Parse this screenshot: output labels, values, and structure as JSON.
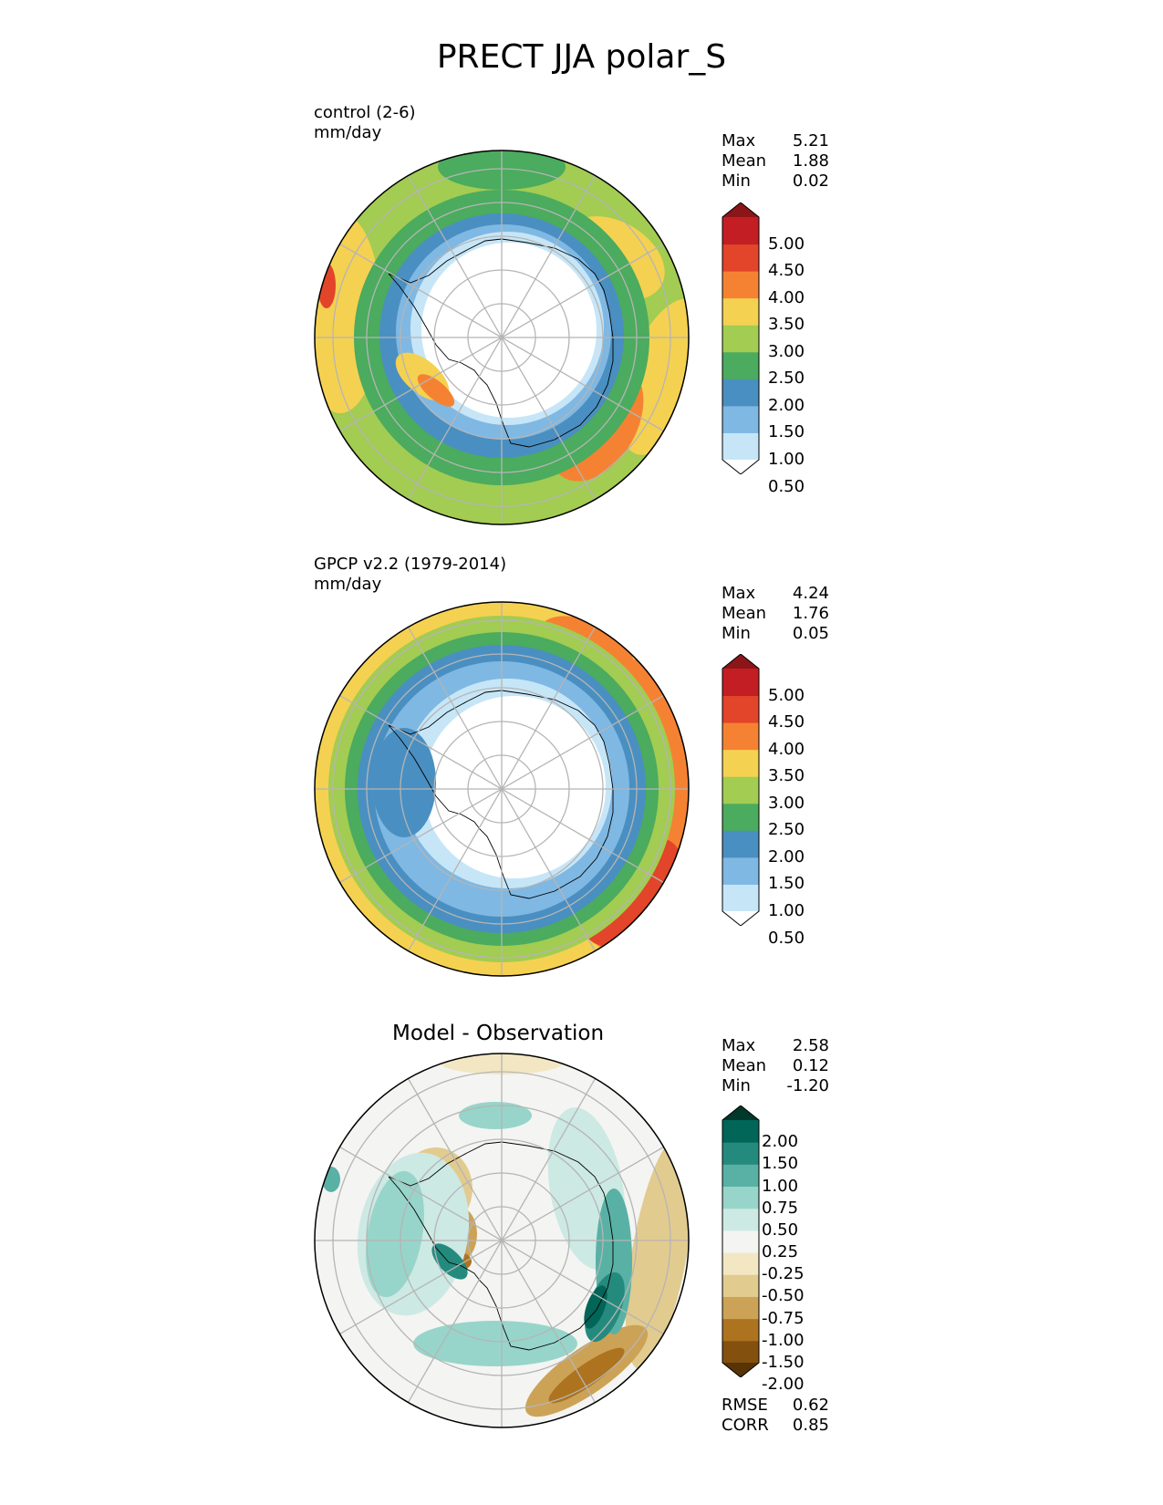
{
  "figure": {
    "title": "PRECT JJA polar_S"
  },
  "panels": [
    {
      "id": "test",
      "title_line1": "control (2-6)",
      "title_line2": "mm/day",
      "stats": [
        {
          "label": "Max",
          "value": "5.21"
        },
        {
          "label": "Mean",
          "value": "1.88"
        },
        {
          "label": "Min",
          "value": "0.02"
        }
      ],
      "colorbar": {
        "levels": [
          "5.00",
          "4.50",
          "4.00",
          "3.50",
          "3.00",
          "2.50",
          "2.00",
          "1.50",
          "1.00",
          "0.50"
        ],
        "colors": [
          "#ffffff",
          "#c6e6f7",
          "#7fb8e3",
          "#4a8fc1",
          "#4bab5e",
          "#a2cc52",
          "#f5d151",
          "#f58232",
          "#e2452a",
          "#c31e24",
          "#8c1519"
        ],
        "extend": "both"
      }
    },
    {
      "id": "reference",
      "title_line1": "GPCP v2.2 (1979-2014)",
      "title_line2": "mm/day",
      "stats": [
        {
          "label": "Max",
          "value": "4.24"
        },
        {
          "label": "Mean",
          "value": "1.76"
        },
        {
          "label": "Min",
          "value": "0.05"
        }
      ],
      "colorbar": {
        "levels": [
          "5.00",
          "4.50",
          "4.00",
          "3.50",
          "3.00",
          "2.50",
          "2.00",
          "1.50",
          "1.00",
          "0.50"
        ],
        "colors": [
          "#ffffff",
          "#c6e6f7",
          "#7fb8e3",
          "#4a8fc1",
          "#4bab5e",
          "#a2cc52",
          "#f5d151",
          "#f58232",
          "#e2452a",
          "#c31e24",
          "#8c1519"
        ],
        "extend": "both"
      }
    },
    {
      "id": "diff",
      "title": "Model - Observation",
      "stats": [
        {
          "label": "Max",
          "value": "2.58"
        },
        {
          "label": "Mean",
          "value": "0.12"
        },
        {
          "label": "Min",
          "value": "-1.20"
        }
      ],
      "metrics": [
        {
          "label": "RMSE",
          "value": "0.62"
        },
        {
          "label": "CORR",
          "value": "0.85"
        }
      ],
      "colorbar": {
        "levels": [
          "2.00",
          "1.50",
          "1.00",
          "0.75",
          "0.50",
          "0.25",
          "-0.25",
          "-0.50",
          "-0.75",
          "-1.00",
          "-1.50",
          "-2.00"
        ],
        "colors": [
          "#573306",
          "#83500e",
          "#ae731f",
          "#cca356",
          "#e2cb8f",
          "#f3e6c3",
          "#f4f4f2",
          "#cde9e4",
          "#97d5ca",
          "#59b1a5",
          "#258a7e",
          "#016557",
          "#00382c"
        ],
        "extend": "both"
      }
    }
  ],
  "chart_data": [
    {
      "type": "heatmap",
      "projection": "south-polar-stereographic",
      "title": "control (2-6)",
      "units": "mm/day",
      "field_description_levels": [
        0.5,
        1.0,
        1.5,
        2.0,
        2.5,
        3.0,
        3.5,
        4.0,
        4.5,
        5.0
      ],
      "stats": {
        "max": 5.21,
        "mean": 1.88,
        "min": 0.02
      },
      "grid": true
    },
    {
      "type": "heatmap",
      "projection": "south-polar-stereographic",
      "title": "GPCP v2.2 (1979-2014)",
      "units": "mm/day",
      "field_description_levels": [
        0.5,
        1.0,
        1.5,
        2.0,
        2.5,
        3.0,
        3.5,
        4.0,
        4.5,
        5.0
      ],
      "stats": {
        "max": 4.24,
        "mean": 1.76,
        "min": 0.05
      },
      "grid": true
    },
    {
      "type": "heatmap",
      "projection": "south-polar-stereographic",
      "title": "Model - Observation",
      "field_description_levels": [
        -2.0,
        -1.5,
        -1.0,
        -0.75,
        -0.5,
        -0.25,
        0.25,
        0.5,
        0.75,
        1.0,
        1.5,
        2.0
      ],
      "stats": {
        "max": 2.58,
        "mean": 0.12,
        "min": -1.2,
        "rmse": 0.62,
        "corr": 0.85
      },
      "grid": true
    }
  ]
}
